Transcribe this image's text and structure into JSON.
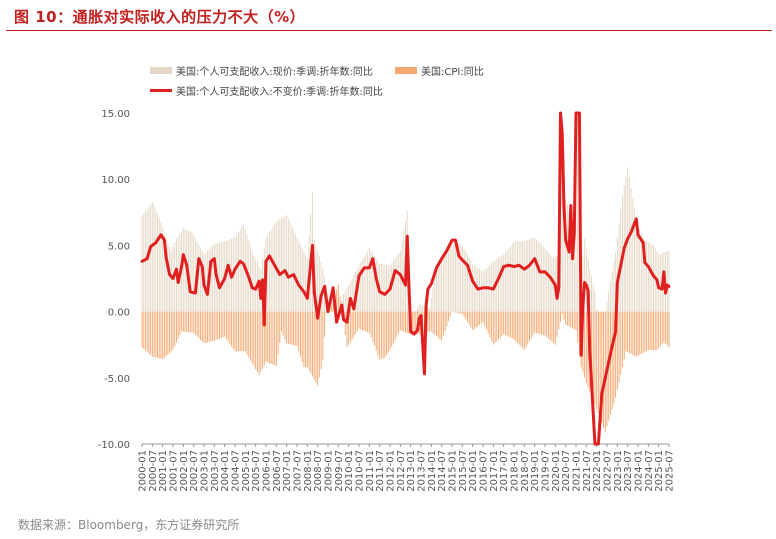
{
  "figure": {
    "title": "图 10：通胀对实际收入的压力不大（%）",
    "source": "数据来源：Bloomberg，东方证券研究所"
  },
  "colors": {
    "title": "#c0201f",
    "nominal": "#e4d7c5",
    "cpi": "#f4a76f",
    "real": "#e02020",
    "axis": "#999999"
  },
  "chart_data": {
    "type": "bar",
    "legend_position": "top",
    "ylim": [
      -10,
      15
    ],
    "y_ticks": [
      "15.00",
      "10.00",
      "5.00",
      "0.00",
      "-5.00",
      "-10.00"
    ],
    "x_tick_labels": [
      "2000-01",
      "2000-07",
      "2001-01",
      "2001-07",
      "2002-01",
      "2002-07",
      "2003-01",
      "2003-07",
      "2004-01",
      "2004-07",
      "2005-01",
      "2005-07",
      "2006-01",
      "2006-07",
      "2007-01",
      "2007-07",
      "2008-01",
      "2008-07",
      "2009-01",
      "2009-07",
      "2010-01",
      "2010-07",
      "2011-01",
      "2011-07",
      "2012-01",
      "2012-07",
      "2013-01",
      "2013-07",
      "2014-01",
      "2014-07",
      "2015-01",
      "2015-07",
      "2016-01",
      "2016-07",
      "2017-01",
      "2017-07",
      "2018-01",
      "2018-07",
      "2019-01",
      "2019-07",
      "2020-01",
      "2020-07",
      "2021-01",
      "2021-07",
      "2022-01",
      "2022-07",
      "2023-01",
      "2023-07",
      "2024-01",
      "2024-07",
      "2025-01",
      "2025-07"
    ],
    "x_range": [
      "2000-01",
      "2025-07"
    ],
    "series": [
      {
        "name": "美国:个人可支配收入:现价:季调:折年数:同比",
        "kind": "bar",
        "points": [
          [
            "2000-01",
            7.2
          ],
          [
            "2000-07",
            8.3
          ],
          [
            "2000-12",
            6.8
          ],
          [
            "2001-03",
            5.5
          ],
          [
            "2001-06",
            4.6
          ],
          [
            "2001-09",
            5.5
          ],
          [
            "2002-01",
            6.3
          ],
          [
            "2002-06",
            6.0
          ],
          [
            "2003-01",
            4.3
          ],
          [
            "2003-07",
            5.1
          ],
          [
            "2004-01",
            5.3
          ],
          [
            "2004-07",
            5.6
          ],
          [
            "2004-12",
            6.6
          ],
          [
            "2005-06",
            4.2
          ],
          [
            "2005-10",
            3.2
          ],
          [
            "2006-01",
            5.6
          ],
          [
            "2006-07",
            6.8
          ],
          [
            "2007-01",
            7.3
          ],
          [
            "2007-07",
            5.6
          ],
          [
            "2008-01",
            4.0
          ],
          [
            "2008-04",
            9.0
          ],
          [
            "2008-05",
            5.4
          ],
          [
            "2008-09",
            3.8
          ],
          [
            "2009-01",
            1.5
          ],
          [
            "2009-06",
            -0.6
          ],
          [
            "2009-10",
            1.3
          ],
          [
            "2010-01",
            2.0
          ],
          [
            "2010-07",
            3.5
          ],
          [
            "2011-01",
            4.8
          ],
          [
            "2011-07",
            3.6
          ],
          [
            "2012-01",
            3.5
          ],
          [
            "2012-07",
            4.6
          ],
          [
            "2012-11",
            7.6
          ],
          [
            "2012-12",
            4.0
          ],
          [
            "2013-01",
            -0.8
          ],
          [
            "2013-06",
            0.6
          ],
          [
            "2013-12",
            0.2
          ],
          [
            "2014-04",
            3.5
          ],
          [
            "2014-10",
            4.5
          ],
          [
            "2015-01",
            5.2
          ],
          [
            "2015-07",
            5.0
          ],
          [
            "2016-01",
            3.6
          ],
          [
            "2016-07",
            3.0
          ],
          [
            "2017-01",
            3.8
          ],
          [
            "2017-07",
            4.3
          ],
          [
            "2018-01",
            5.3
          ],
          [
            "2018-07",
            5.3
          ],
          [
            "2019-01",
            5.6
          ],
          [
            "2019-07",
            4.8
          ],
          [
            "2019-12",
            4.0
          ],
          [
            "2020-03",
            4.3
          ],
          [
            "2020-04",
            15.0
          ],
          [
            "2020-05",
            13.5
          ],
          [
            "2020-07",
            8.5
          ],
          [
            "2020-12",
            6.4
          ],
          [
            "2021-01",
            15.0
          ],
          [
            "2021-03",
            15.0
          ],
          [
            "2021-04",
            3.0
          ],
          [
            "2021-06",
            5.5
          ],
          [
            "2021-09",
            3.2
          ],
          [
            "2021-12",
            1.5
          ],
          [
            "2022-03",
            -2.5
          ],
          [
            "2022-07",
            0.8
          ],
          [
            "2022-12",
            4.5
          ],
          [
            "2023-04",
            8.8
          ],
          [
            "2023-07",
            10.9
          ],
          [
            "2023-12",
            7.0
          ],
          [
            "2024-04",
            5.5
          ],
          [
            "2024-10",
            5.0
          ],
          [
            "2025-01",
            4.3
          ],
          [
            "2025-07",
            4.6
          ]
        ]
      },
      {
        "name": "美国:CPI:同比",
        "kind": "bar",
        "points": [
          [
            "2000-01",
            -2.7
          ],
          [
            "2000-07",
            -3.4
          ],
          [
            "2001-01",
            -3.6
          ],
          [
            "2001-07",
            -2.9
          ],
          [
            "2001-12",
            -1.5
          ],
          [
            "2002-07",
            -1.6
          ],
          [
            "2003-01",
            -2.4
          ],
          [
            "2003-07",
            -2.2
          ],
          [
            "2004-01",
            -1.9
          ],
          [
            "2004-07",
            -3.0
          ],
          [
            "2005-01",
            -3.0
          ],
          [
            "2005-09",
            -4.8
          ],
          [
            "2006-01",
            -3.8
          ],
          [
            "2006-07",
            -4.1
          ],
          [
            "2006-10",
            -1.5
          ],
          [
            "2007-01",
            -2.4
          ],
          [
            "2007-07",
            -2.6
          ],
          [
            "2007-11",
            -4.2
          ],
          [
            "2008-01",
            -4.2
          ],
          [
            "2008-07",
            -5.6
          ],
          [
            "2008-10",
            -3.7
          ],
          [
            "2008-12",
            -0.1
          ],
          [
            "2009-03",
            0.4
          ],
          [
            "2009-07",
            2.1
          ],
          [
            "2009-12",
            -2.7
          ],
          [
            "2010-07",
            -1.3
          ],
          [
            "2011-01",
            -1.6
          ],
          [
            "2011-07",
            -3.6
          ],
          [
            "2011-10",
            -3.5
          ],
          [
            "2012-01",
            -2.9
          ],
          [
            "2012-07",
            -1.4
          ],
          [
            "2012-12",
            -1.7
          ],
          [
            "2013-07",
            -1.7
          ],
          [
            "2014-01",
            -1.5
          ],
          [
            "2014-07",
            -2.2
          ],
          [
            "2015-01",
            0.0
          ],
          [
            "2015-07",
            -0.2
          ],
          [
            "2016-01",
            -1.4
          ],
          [
            "2016-07",
            -0.8
          ],
          [
            "2017-01",
            -2.5
          ],
          [
            "2017-07",
            -1.7
          ],
          [
            "2018-01",
            -2.1
          ],
          [
            "2018-07",
            -2.9
          ],
          [
            "2019-01",
            -1.6
          ],
          [
            "2019-07",
            -1.8
          ],
          [
            "2020-01",
            -2.5
          ],
          [
            "2020-05",
            -0.2
          ],
          [
            "2020-07",
            -1.0
          ],
          [
            "2021-01",
            -1.4
          ],
          [
            "2021-04",
            -4.2
          ],
          [
            "2021-07",
            -5.4
          ],
          [
            "2021-12",
            -7.0
          ],
          [
            "2022-06",
            -9.1
          ],
          [
            "2022-12",
            -6.5
          ],
          [
            "2023-06",
            -3.0
          ],
          [
            "2023-12",
            -3.4
          ],
          [
            "2024-07",
            -2.9
          ],
          [
            "2024-12",
            -2.9
          ],
          [
            "2025-04",
            -2.3
          ],
          [
            "2025-07",
            -2.7
          ]
        ]
      },
      {
        "name": "美国:个人可支配收入:不变价:季调:折年数:同比",
        "kind": "line",
        "points": [
          [
            "2000-01",
            3.8
          ],
          [
            "2000-04",
            4.0
          ],
          [
            "2000-06",
            4.9
          ],
          [
            "2000-09",
            5.2
          ],
          [
            "2000-12",
            5.8
          ],
          [
            "2001-02",
            5.4
          ],
          [
            "2001-03",
            4.1
          ],
          [
            "2001-05",
            2.8
          ],
          [
            "2001-07",
            2.5
          ],
          [
            "2001-09",
            3.2
          ],
          [
            "2001-10",
            2.2
          ],
          [
            "2001-12",
            3.4
          ],
          [
            "2002-01",
            4.3
          ],
          [
            "2002-03",
            3.5
          ],
          [
            "2002-05",
            1.5
          ],
          [
            "2002-08",
            1.4
          ],
          [
            "2002-10",
            4.0
          ],
          [
            "2002-12",
            3.4
          ],
          [
            "2003-01",
            2.0
          ],
          [
            "2003-03",
            1.3
          ],
          [
            "2003-05",
            3.8
          ],
          [
            "2003-07",
            4.0
          ],
          [
            "2003-08",
            2.8
          ],
          [
            "2003-10",
            1.8
          ],
          [
            "2004-01",
            2.5
          ],
          [
            "2004-03",
            3.5
          ],
          [
            "2004-05",
            2.6
          ],
          [
            "2004-07",
            3.2
          ],
          [
            "2004-10",
            3.8
          ],
          [
            "2004-12",
            3.6
          ],
          [
            "2005-03",
            2.6
          ],
          [
            "2005-05",
            1.8
          ],
          [
            "2005-07",
            1.7
          ],
          [
            "2005-09",
            2.3
          ],
          [
            "2005-10",
            1.0
          ],
          [
            "2005-11",
            2.4
          ],
          [
            "2005-12",
            -1.0
          ],
          [
            "2006-01",
            3.8
          ],
          [
            "2006-03",
            4.2
          ],
          [
            "2006-06",
            3.5
          ],
          [
            "2006-09",
            2.8
          ],
          [
            "2006-12",
            3.1
          ],
          [
            "2007-02",
            2.6
          ],
          [
            "2007-05",
            2.8
          ],
          [
            "2007-08",
            2.0
          ],
          [
            "2007-11",
            1.5
          ],
          [
            "2008-01",
            1.0
          ],
          [
            "2008-04",
            5.0
          ],
          [
            "2008-05",
            1.5
          ],
          [
            "2008-07",
            -0.5
          ],
          [
            "2008-09",
            1.2
          ],
          [
            "2008-11",
            1.9
          ],
          [
            "2009-01",
            0.0
          ],
          [
            "2009-04",
            1.8
          ],
          [
            "2009-06",
            -0.8
          ],
          [
            "2009-09",
            0.5
          ],
          [
            "2009-10",
            -0.6
          ],
          [
            "2009-12",
            -0.8
          ],
          [
            "2010-02",
            1.0
          ],
          [
            "2010-04",
            0.2
          ],
          [
            "2010-07",
            2.7
          ],
          [
            "2010-10",
            3.3
          ],
          [
            "2011-01",
            3.3
          ],
          [
            "2011-03",
            4.0
          ],
          [
            "2011-05",
            2.5
          ],
          [
            "2011-07",
            1.5
          ],
          [
            "2011-10",
            1.3
          ],
          [
            "2012-01",
            1.7
          ],
          [
            "2012-04",
            3.1
          ],
          [
            "2012-07",
            2.8
          ],
          [
            "2012-10",
            2.0
          ],
          [
            "2012-11",
            5.7
          ],
          [
            "2012-12",
            2.0
          ],
          [
            "2013-01",
            -1.5
          ],
          [
            "2013-03",
            -1.7
          ],
          [
            "2013-05",
            -1.4
          ],
          [
            "2013-06",
            -0.5
          ],
          [
            "2013-07",
            -0.3
          ],
          [
            "2013-09",
            -4.7
          ],
          [
            "2013-10",
            0.5
          ],
          [
            "2013-11",
            1.7
          ],
          [
            "2014-01",
            2.1
          ],
          [
            "2014-04",
            3.3
          ],
          [
            "2014-07",
            4.0
          ],
          [
            "2014-10",
            4.6
          ],
          [
            "2015-01",
            5.4
          ],
          [
            "2015-03",
            5.4
          ],
          [
            "2015-05",
            4.2
          ],
          [
            "2015-07",
            3.9
          ],
          [
            "2015-10",
            3.5
          ],
          [
            "2016-01",
            2.3
          ],
          [
            "2016-04",
            1.7
          ],
          [
            "2016-07",
            1.8
          ],
          [
            "2016-10",
            1.8
          ],
          [
            "2017-01",
            1.7
          ],
          [
            "2017-04",
            2.5
          ],
          [
            "2017-07",
            3.4
          ],
          [
            "2017-10",
            3.5
          ],
          [
            "2018-01",
            3.4
          ],
          [
            "2018-04",
            3.5
          ],
          [
            "2018-07",
            3.2
          ],
          [
            "2018-10",
            3.5
          ],
          [
            "2019-01",
            4.0
          ],
          [
            "2019-04",
            3.0
          ],
          [
            "2019-07",
            3.0
          ],
          [
            "2019-10",
            2.6
          ],
          [
            "2020-01",
            2.0
          ],
          [
            "2020-02",
            1.0
          ],
          [
            "2020-03",
            1.8
          ],
          [
            "2020-04",
            15.0
          ],
          [
            "2020-05",
            13.5
          ],
          [
            "2020-06",
            8.0
          ],
          [
            "2020-07",
            5.4
          ],
          [
            "2020-09",
            4.5
          ],
          [
            "2020-10",
            8.0
          ],
          [
            "2020-11",
            4.0
          ],
          [
            "2020-12",
            6.0
          ],
          [
            "2021-01",
            15.0
          ],
          [
            "2021-02",
            15.0
          ],
          [
            "2021-03",
            15.0
          ],
          [
            "2021-04",
            -3.3
          ],
          [
            "2021-05",
            0.5
          ],
          [
            "2021-06",
            2.2
          ],
          [
            "2021-07",
            2.0
          ],
          [
            "2021-08",
            1.6
          ],
          [
            "2021-09",
            -3.0
          ],
          [
            "2021-12",
            -10.0
          ],
          [
            "2022-02",
            -10.0
          ],
          [
            "2022-04",
            -6.2
          ],
          [
            "2022-06",
            -5.0
          ],
          [
            "2022-08",
            -3.8
          ],
          [
            "2022-10",
            -2.6
          ],
          [
            "2022-12",
            -1.5
          ],
          [
            "2023-01",
            2.2
          ],
          [
            "2023-03",
            3.5
          ],
          [
            "2023-05",
            4.8
          ],
          [
            "2023-07",
            5.5
          ],
          [
            "2023-09",
            6.0
          ],
          [
            "2023-12",
            7.0
          ],
          [
            "2024-01",
            5.8
          ],
          [
            "2024-04",
            5.2
          ],
          [
            "2024-05",
            3.7
          ],
          [
            "2024-07",
            3.4
          ],
          [
            "2024-10",
            2.7
          ],
          [
            "2024-12",
            2.4
          ],
          [
            "2025-01",
            1.8
          ],
          [
            "2025-03",
            1.7
          ],
          [
            "2025-04",
            3.0
          ],
          [
            "2025-05",
            1.4
          ],
          [
            "2025-06",
            2.0
          ],
          [
            "2025-07",
            1.9
          ]
        ]
      }
    ]
  }
}
